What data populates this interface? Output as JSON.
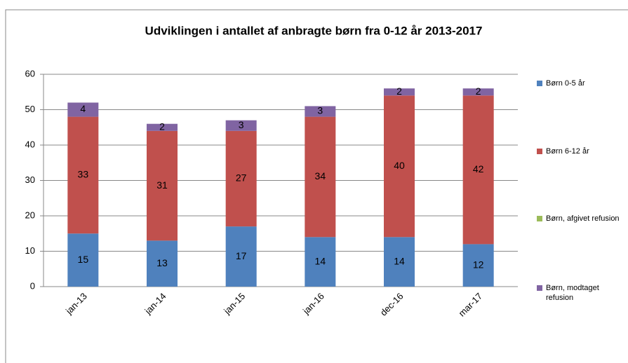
{
  "chart_data": {
    "type": "stacked_bar",
    "title": "Udviklingen i antallet af anbragte børn fra 0-12 år 2013-2017",
    "categories": [
      "jan-13",
      "jan-14",
      "jan-15",
      "jan-16",
      "dec-16",
      "mar-17"
    ],
    "series": [
      {
        "name": "Børn 0-5 år",
        "color": "#4f81bd",
        "values": [
          15,
          13,
          17,
          14,
          14,
          12
        ]
      },
      {
        "name": "Børn 6-12 år",
        "color": "#c0504d",
        "values": [
          33,
          31,
          27,
          34,
          40,
          42
        ]
      },
      {
        "name": "Børn, afgivet refusion",
        "color": "#9bbb59",
        "values": [
          0,
          0,
          0,
          0,
          0,
          0
        ]
      },
      {
        "name": "Børn, modtaget refusion",
        "color": "#8064a2",
        "values": [
          4,
          2,
          3,
          3,
          2,
          2
        ]
      }
    ],
    "ylim": [
      0,
      60
    ],
    "yticks": [
      0,
      10,
      20,
      30,
      40,
      50,
      60
    ],
    "grid": true,
    "legend": "right"
  }
}
